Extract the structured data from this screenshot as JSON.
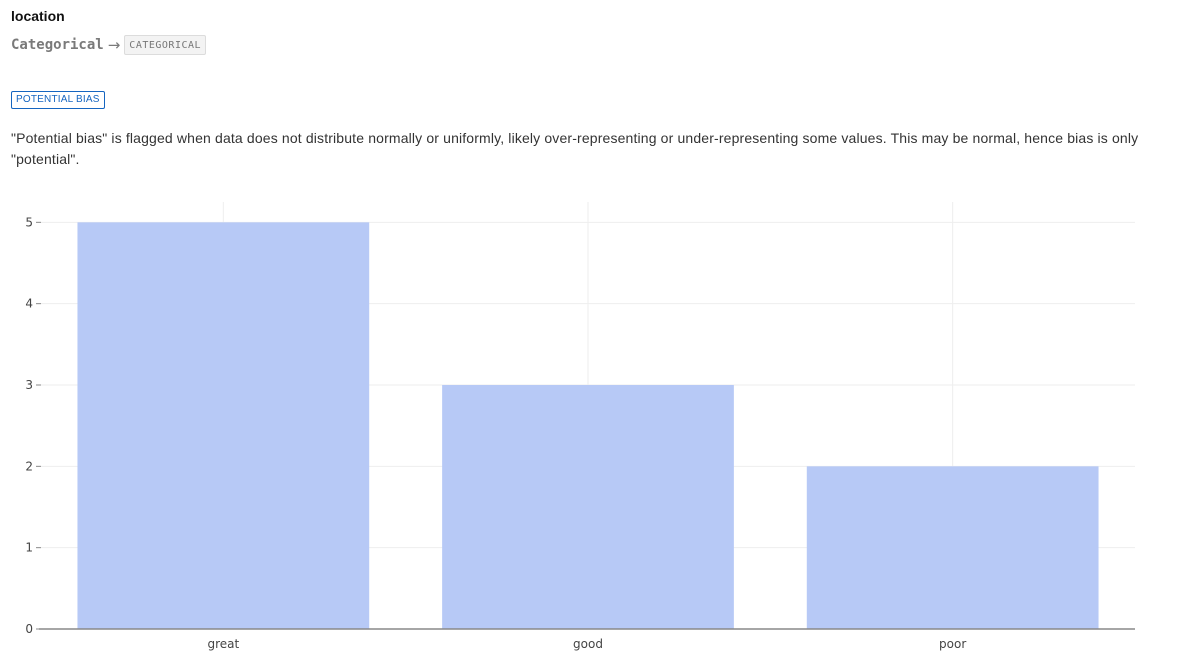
{
  "header": {
    "column_name": "location",
    "type_from": "Categorical",
    "arrow": "→",
    "type_to": "CATEGORICAL"
  },
  "bias": {
    "badge_label": "POTENTIAL BIAS",
    "description": "\"Potential bias\" is flagged when data does not distribute normally or uniformly, likely over-representing or under-representing some values. This may be normal, hence bias is only \"potential\"."
  },
  "chart_data": {
    "type": "bar",
    "categories": [
      "great",
      "good",
      "poor"
    ],
    "values": [
      5,
      3,
      2
    ],
    "title": "",
    "xlabel": "",
    "ylabel": "",
    "ylim": [
      0,
      5.25
    ],
    "yticks": [
      0,
      1,
      2,
      3,
      4,
      5
    ],
    "grid": true,
    "bar_color": "#b7c9f6",
    "grid_color": "#eeeeee",
    "axis_color": "#888888"
  }
}
